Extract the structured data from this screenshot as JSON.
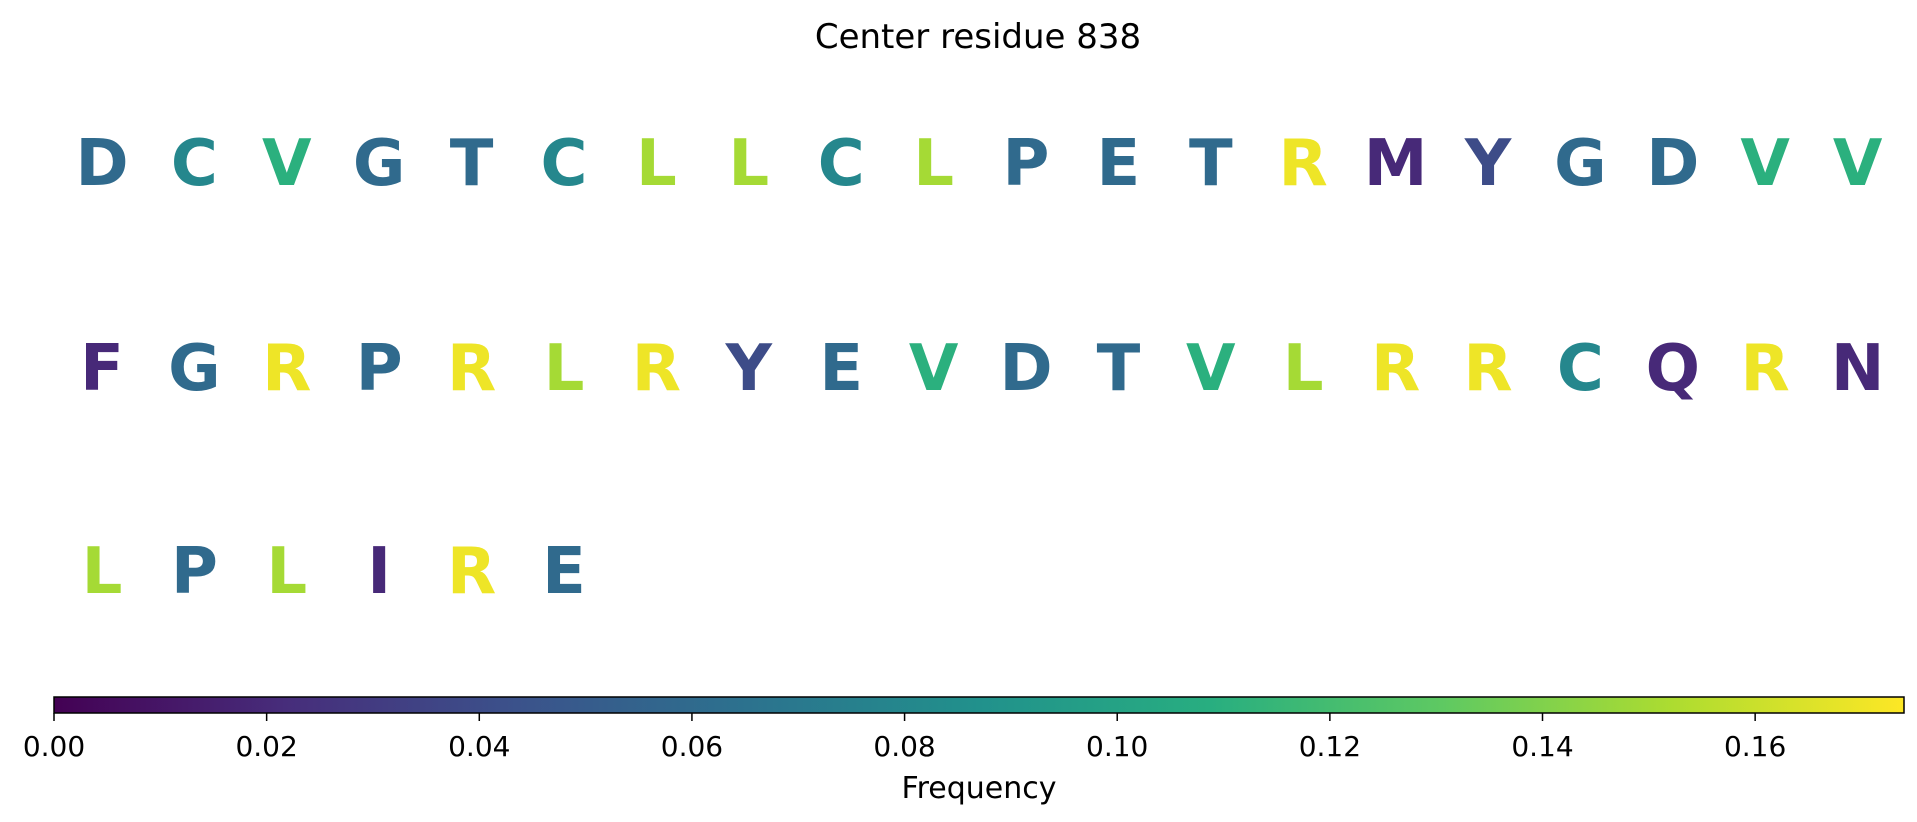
{
  "chart_data": {
    "type": "heatmap",
    "title": "Center residue 838",
    "residues": [
      {
        "letter": "D",
        "value": 0.06
      },
      {
        "letter": "C",
        "value": 0.08
      },
      {
        "letter": "V",
        "value": 0.11
      },
      {
        "letter": "G",
        "value": 0.06
      },
      {
        "letter": "T",
        "value": 0.06
      },
      {
        "letter": "C",
        "value": 0.08
      },
      {
        "letter": "L",
        "value": 0.15
      },
      {
        "letter": "L",
        "value": 0.15
      },
      {
        "letter": "C",
        "value": 0.08
      },
      {
        "letter": "L",
        "value": 0.15
      },
      {
        "letter": "P",
        "value": 0.06
      },
      {
        "letter": "E",
        "value": 0.06
      },
      {
        "letter": "T",
        "value": 0.06
      },
      {
        "letter": "R",
        "value": 0.17
      },
      {
        "letter": "M",
        "value": 0.02
      },
      {
        "letter": "Y",
        "value": 0.04
      },
      {
        "letter": "G",
        "value": 0.06
      },
      {
        "letter": "D",
        "value": 0.06
      },
      {
        "letter": "V",
        "value": 0.11
      },
      {
        "letter": "V",
        "value": 0.11
      },
      {
        "letter": "F",
        "value": 0.02
      },
      {
        "letter": "G",
        "value": 0.06
      },
      {
        "letter": "R",
        "value": 0.17
      },
      {
        "letter": "P",
        "value": 0.06
      },
      {
        "letter": "R",
        "value": 0.17
      },
      {
        "letter": "L",
        "value": 0.15
      },
      {
        "letter": "R",
        "value": 0.17
      },
      {
        "letter": "Y",
        "value": 0.04
      },
      {
        "letter": "E",
        "value": 0.06
      },
      {
        "letter": "V",
        "value": 0.11
      },
      {
        "letter": "D",
        "value": 0.06
      },
      {
        "letter": "T",
        "value": 0.06
      },
      {
        "letter": "V",
        "value": 0.11
      },
      {
        "letter": "L",
        "value": 0.15
      },
      {
        "letter": "R",
        "value": 0.17
      },
      {
        "letter": "R",
        "value": 0.17
      },
      {
        "letter": "C",
        "value": 0.08
      },
      {
        "letter": "Q",
        "value": 0.02
      },
      {
        "letter": "R",
        "value": 0.17
      },
      {
        "letter": "N",
        "value": 0.02
      },
      {
        "letter": "L",
        "value": 0.15
      },
      {
        "letter": "P",
        "value": 0.06
      },
      {
        "letter": "L",
        "value": 0.15
      },
      {
        "letter": "I",
        "value": 0.02
      },
      {
        "letter": "R",
        "value": 0.17
      },
      {
        "letter": "E",
        "value": 0.06
      }
    ],
    "colorbar": {
      "label": "Frequency",
      "colormap": "viridis",
      "range": [
        0,
        0.174
      ],
      "ticks": [
        0.0,
        0.02,
        0.04,
        0.06,
        0.08,
        0.1,
        0.12,
        0.14,
        0.16
      ],
      "tick_labels": [
        "0.00",
        "0.02",
        "0.04",
        "0.06",
        "0.08",
        "0.10",
        "0.12",
        "0.14",
        "0.16"
      ]
    }
  }
}
